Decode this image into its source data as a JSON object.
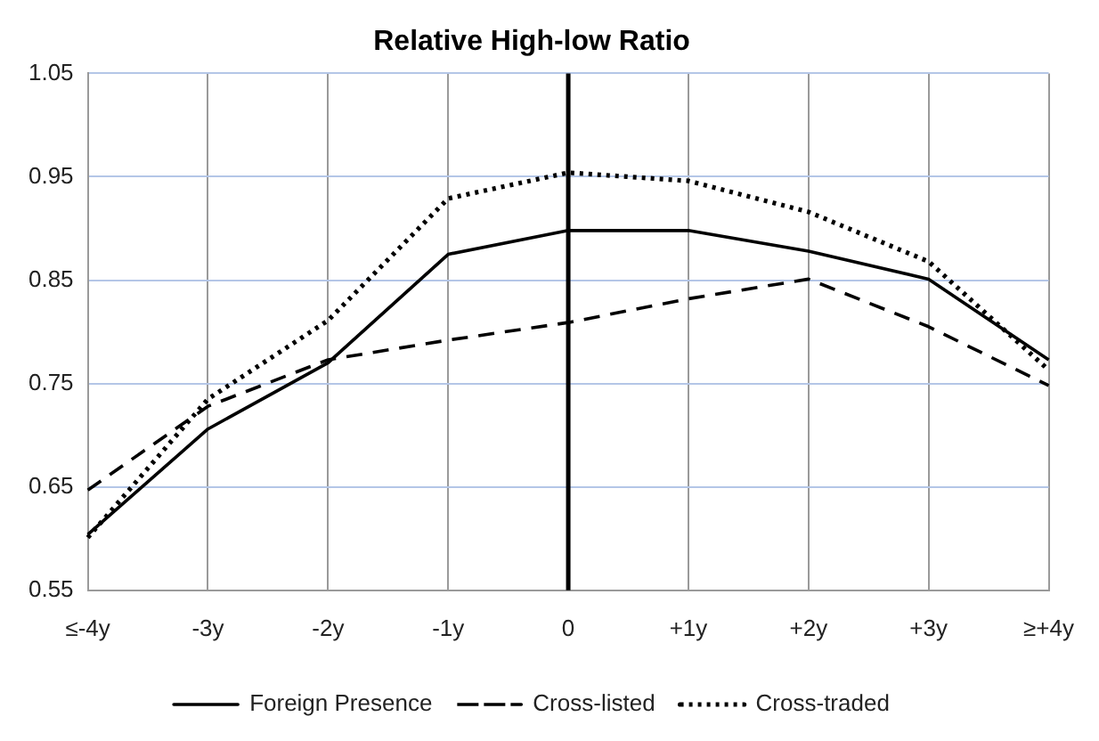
{
  "chart_data": {
    "type": "line",
    "title": "Relative High-low Ratio",
    "categories": [
      "≤-4y",
      "-3y",
      "-2y",
      "-1y",
      "0",
      "+1y",
      "+2y",
      "+3y",
      "≥+4y"
    ],
    "series": [
      {
        "name": "Foreign Presence",
        "color": "#000000",
        "line_style": "solid",
        "values": [
          0.604,
          0.706,
          0.77,
          0.875,
          0.898,
          0.898,
          0.878,
          0.851,
          0.773
        ]
      },
      {
        "name": "Cross-listed",
        "color": "#000000",
        "line_style": "dashed",
        "values": [
          0.647,
          0.728,
          0.773,
          0.792,
          0.809,
          0.832,
          0.851,
          0.805,
          0.748
        ]
      },
      {
        "name": "Cross-traded",
        "color": "#000000",
        "line_style": "dotted",
        "values": [
          0.601,
          0.735,
          0.811,
          0.929,
          0.954,
          0.946,
          0.916,
          0.868,
          0.763
        ]
      }
    ],
    "ylim": [
      0.55,
      1.05
    ],
    "yticks": [
      0.55,
      0.65,
      0.75,
      0.85,
      0.95,
      1.05
    ],
    "ref_lines": [
      {
        "axis": "x",
        "value": "0",
        "color": "#000000"
      }
    ],
    "grid": true,
    "legend": "bottom",
    "marker": "none"
  }
}
